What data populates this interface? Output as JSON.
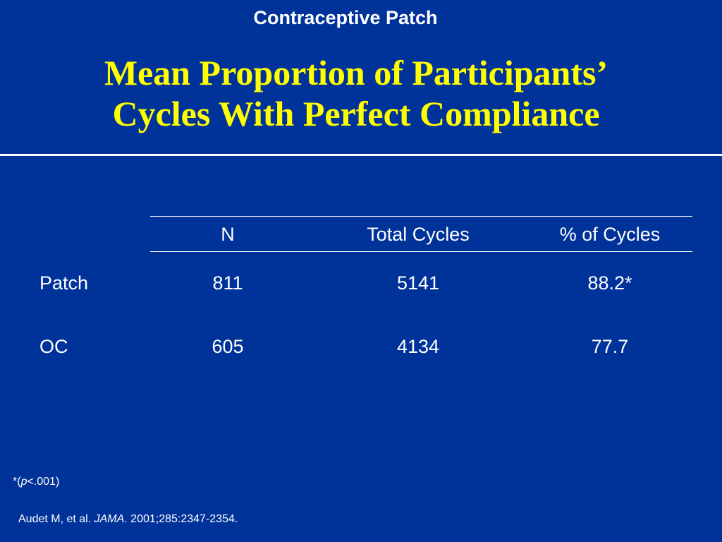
{
  "header": {
    "label": "Contraceptive Patch"
  },
  "title": {
    "line1": "Mean Proportion of Participants’",
    "line2": "Cycles With Perfect Compliance"
  },
  "table": {
    "columns": [
      "N",
      "Total Cycles",
      "% of Cycles"
    ],
    "rows": [
      {
        "label": "Patch",
        "n": "811",
        "total_cycles": "5141",
        "pct_cycles": "88.2*"
      },
      {
        "label": "OC",
        "n": "605",
        "total_cycles": "4134",
        "pct_cycles": "77.7"
      }
    ]
  },
  "footnote": {
    "prefix": "*(",
    "p": "p",
    "suffix": "<.001)"
  },
  "citation": {
    "authors": "Audet M, et al. ",
    "journal": "JAMA.",
    "details": " 2001;285:2347-2354."
  },
  "colors": {
    "background": "#003399",
    "title": "#ffff00",
    "text": "#ffffff"
  }
}
